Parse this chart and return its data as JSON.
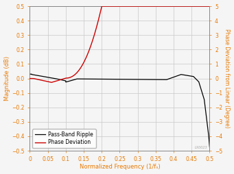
{
  "title": "",
  "xlabel": "Normalized Frequency (1/fₛ)",
  "ylabel_left": "Magnitude (dB)",
  "ylabel_right": "Phase Deviation from Linear (Degree)",
  "xlim": [
    0,
    0.5
  ],
  "ylim_left": [
    -0.5,
    0.5
  ],
  "ylim_right": [
    -5,
    5
  ],
  "xticks": [
    0,
    0.05,
    0.1,
    0.15,
    0.2,
    0.25,
    0.3,
    0.35,
    0.4,
    0.45,
    0.5
  ],
  "yticks_left": [
    -0.5,
    -0.4,
    -0.3,
    -0.2,
    -0.1,
    0.0,
    0.1,
    0.2,
    0.3,
    0.4,
    0.5
  ],
  "yticks_right": [
    -5,
    -4,
    -3,
    -2,
    -1,
    0,
    1,
    2,
    3,
    4,
    5
  ],
  "legend_labels": [
    "Pass-Band Ripple",
    "Phase Deviation"
  ],
  "line_black_color": "#000000",
  "line_red_color": "#cc0000",
  "grid_color": "#c8c8c8",
  "label_color": "#e87800",
  "tick_color": "#e87800",
  "axis_color": "#808080",
  "background_color": "#f5f5f5",
  "plot_bg_color": "#f5f5f5",
  "watermark": "LX0023",
  "figsize": [
    3.41,
    2.54
  ],
  "dpi": 100
}
